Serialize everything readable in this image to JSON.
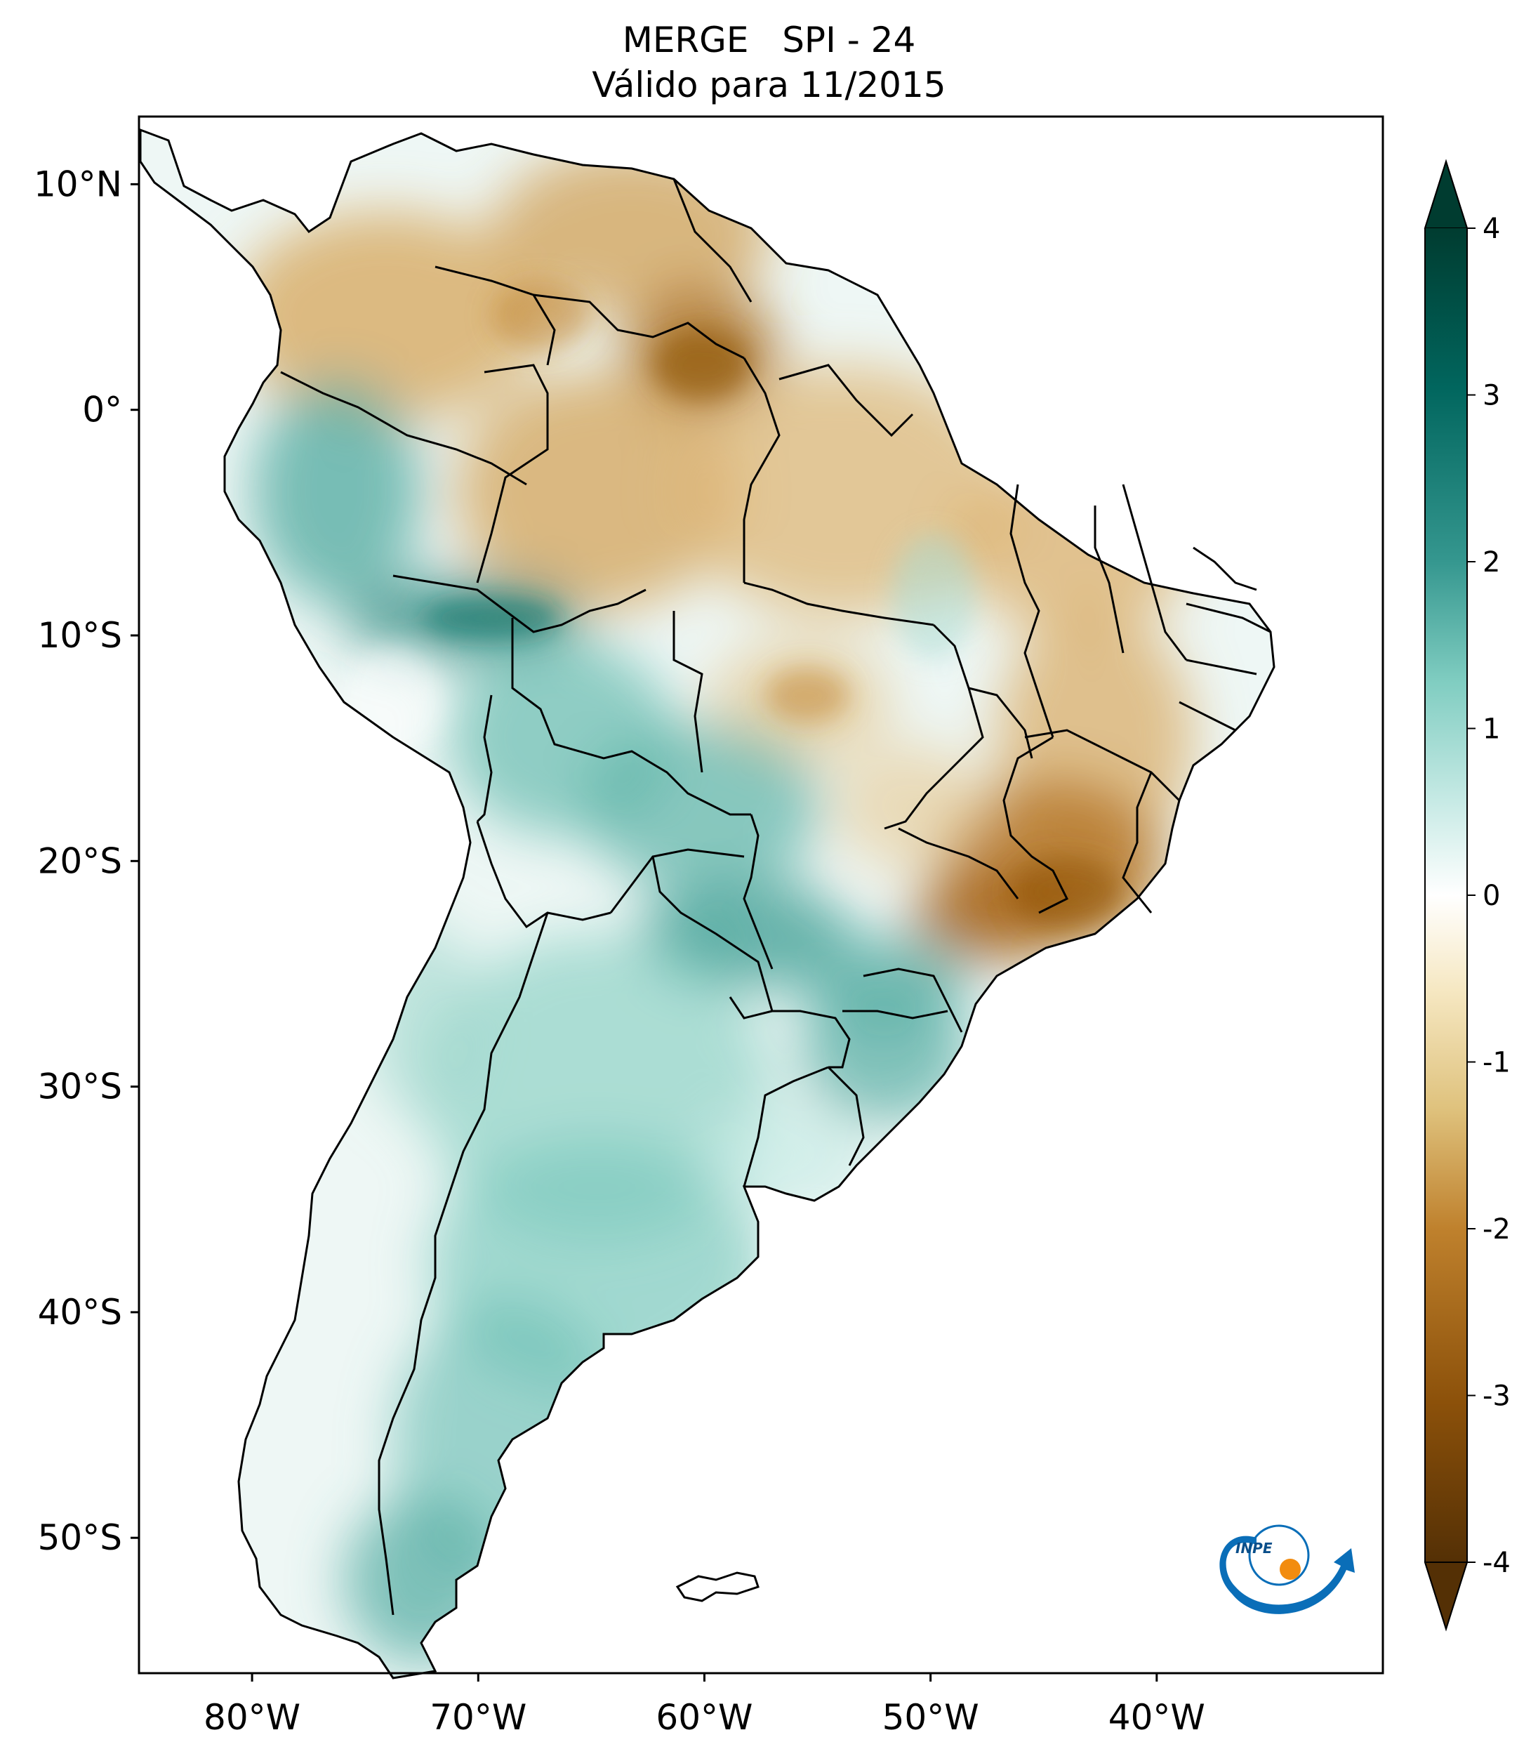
{
  "title": {
    "line1": "MERGE   SPI - 24",
    "line2": "Válido para 11/2015"
  },
  "map": {
    "lon_range": [
      -85,
      -30
    ],
    "lat_range": [
      -56,
      13
    ],
    "lon_ticks": [
      {
        "value": -80,
        "label": "80°W"
      },
      {
        "value": -70,
        "label": "70°W"
      },
      {
        "value": -60,
        "label": "60°W"
      },
      {
        "value": -50,
        "label": "50°W"
      },
      {
        "value": -40,
        "label": "40°W"
      }
    ],
    "lat_ticks": [
      {
        "value": 10,
        "label": "10°N"
      },
      {
        "value": 0,
        "label": "0°"
      },
      {
        "value": -10,
        "label": "10°S"
      },
      {
        "value": -20,
        "label": "20°S"
      },
      {
        "value": -30,
        "label": "30°S"
      },
      {
        "value": -40,
        "label": "40°S"
      },
      {
        "value": -50,
        "label": "50°S"
      }
    ],
    "ocean_color": "#ffffff",
    "border_color": "#000000"
  },
  "colorbar": {
    "min": -4,
    "max": 4,
    "ticks": [
      {
        "value": 4,
        "label": "4"
      },
      {
        "value": 3,
        "label": "3"
      },
      {
        "value": 2,
        "label": "2"
      },
      {
        "value": 1,
        "label": "1"
      },
      {
        "value": 0,
        "label": "0"
      },
      {
        "value": -1,
        "label": "-1"
      },
      {
        "value": -2,
        "label": "-2"
      },
      {
        "value": -3,
        "label": "-3"
      },
      {
        "value": -4,
        "label": "-4"
      }
    ],
    "colors": [
      "#543005",
      "#8c510a",
      "#bf812d",
      "#dfc27d",
      "#f6e8c3",
      "#ffffff",
      "#c7eae5",
      "#80cdc1",
      "#35978f",
      "#01665e",
      "#003c30"
    ],
    "extend": "both"
  },
  "logo": {
    "text": "INPE",
    "colors": {
      "arrow": "#0a6eb8",
      "dot": "#f28c0f"
    }
  }
}
